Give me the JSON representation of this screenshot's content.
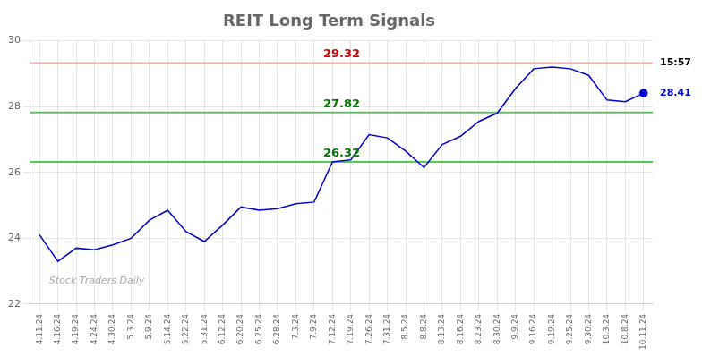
{
  "chart_data": {
    "type": "line",
    "title": "REIT Long Term Signals",
    "categories": [
      "4.11.24",
      "4.16.24",
      "4.19.24",
      "4.24.24",
      "4.30.24",
      "5.3.24",
      "5.9.24",
      "5.14.24",
      "5.22.24",
      "5.31.24",
      "6.12.24",
      "6.20.24",
      "6.25.24",
      "6.28.24",
      "7.3.24",
      "7.9.24",
      "7.12.24",
      "7.19.24",
      "7.26.24",
      "7.31.24",
      "8.5.24",
      "8.8.24",
      "8.13.24",
      "8.16.24",
      "8.23.24",
      "8.30.24",
      "9.9.24",
      "9.16.24",
      "9.19.24",
      "9.25.24",
      "9.30.24",
      "10.3.24",
      "10.8.24",
      "10.11.24"
    ],
    "values": [
      24.1,
      23.3,
      23.7,
      23.65,
      23.8,
      24.0,
      24.55,
      24.85,
      24.2,
      23.9,
      24.4,
      24.95,
      24.85,
      24.9,
      25.05,
      25.1,
      26.32,
      26.38,
      27.15,
      27.05,
      26.65,
      26.15,
      26.85,
      27.1,
      27.55,
      27.8,
      28.55,
      29.15,
      29.2,
      29.15,
      28.95,
      28.2,
      28.15,
      28.41
    ],
    "color": "#0000cc",
    "ylim": [
      22,
      30
    ],
    "yticks": [
      22,
      24,
      26,
      28,
      30
    ],
    "grid": true,
    "reference_lines": [
      {
        "value": 29.32,
        "color": "#ffaaaa",
        "label": "29.32",
        "label_color": "#cc0000"
      },
      {
        "value": 27.82,
        "color": "#55cc55",
        "label": "27.82",
        "label_color": "#007700"
      },
      {
        "value": 26.32,
        "color": "#55cc55",
        "label": "26.32",
        "label_color": "#007700"
      }
    ],
    "annotations": [
      {
        "text": "15:57",
        "y": 29.32,
        "color": "#000000"
      },
      {
        "text": "28.41",
        "y": 28.41,
        "color": "#0000cc"
      },
      {
        "text": "Stock Traders Daily",
        "color": "#aaaaaa"
      }
    ]
  }
}
